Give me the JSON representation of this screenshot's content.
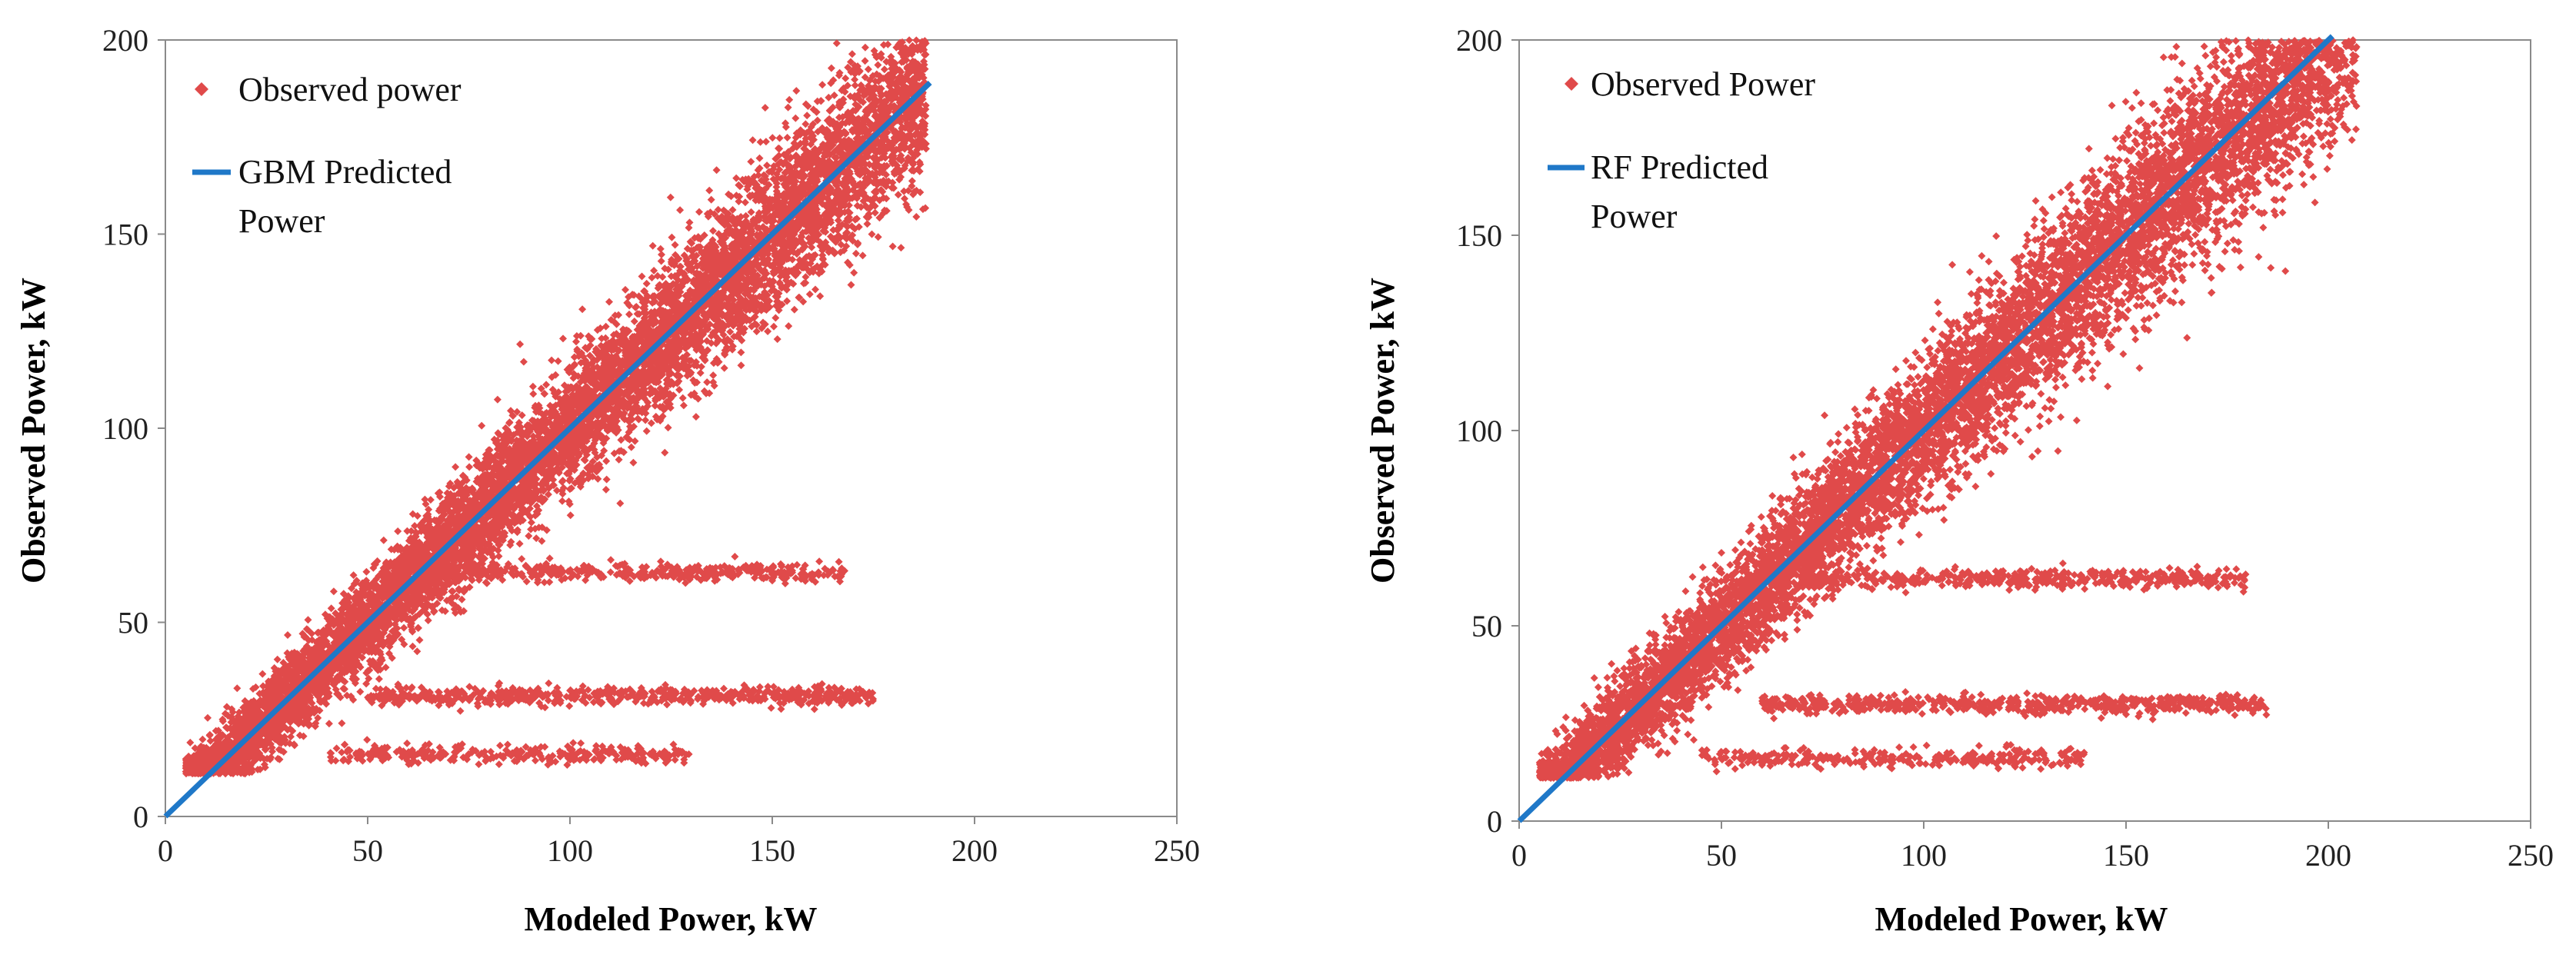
{
  "chart_data": [
    {
      "type": "scatter",
      "panel": "left",
      "xlabel": "Modeled Power, kW",
      "ylabel": "Observed Power,  kW",
      "xlim": [
        0,
        250
      ],
      "ylim": [
        0,
        200
      ],
      "xticks": [
        0,
        50,
        100,
        150,
        200,
        250
      ],
      "yticks": [
        0,
        50,
        100,
        150,
        200
      ],
      "legend_position": "top-left",
      "series": [
        {
          "name": "Observed power",
          "name_lines": [
            "Observed power"
          ],
          "kind": "scatter",
          "color": "#e04a4a",
          "marker": "diamond",
          "description": "dense cloud around the diagonal from about 5 to 188 kW; horizontal bands near 63, 31 and 16 kW",
          "clusters": [
            {
              "x_range": [
                5,
                188
              ],
              "y_offset_spread": 22,
              "count": 9000
            },
            {
              "x_range": [
                60,
                168
              ],
              "y_level": 63,
              "count": 450
            },
            {
              "x_range": [
                50,
                175
              ],
              "y_level": 31,
              "count": 600
            },
            {
              "x_range": [
                40,
                130
              ],
              "y_level": 16,
              "count": 300
            }
          ]
        },
        {
          "name": "GBM Predicted Power",
          "name_lines": [
            "GBM Predicted",
            "Power"
          ],
          "kind": "line",
          "color": "#1f78c8",
          "x": [
            0,
            189
          ],
          "y": [
            0,
            189
          ]
        }
      ]
    },
    {
      "type": "scatter",
      "panel": "right",
      "xlabel": "Modeled Power, kW",
      "ylabel": "Observed Power,  kW",
      "xlim": [
        0,
        250
      ],
      "ylim": [
        0,
        200
      ],
      "xticks": [
        0,
        50,
        100,
        150,
        200,
        250
      ],
      "yticks": [
        0,
        50,
        100,
        150,
        200
      ],
      "legend_position": "top-left",
      "series": [
        {
          "name": "Observed Power",
          "name_lines": [
            "Observed Power"
          ],
          "kind": "scatter",
          "color": "#e04a4a",
          "marker": "diamond",
          "description": "dense cloud around the diagonal from about 5 to 207 kW; horizontal bands near 62, 30 and 16 kW",
          "clusters": [
            {
              "x_range": [
                5,
                207
              ],
              "y_offset_spread": 26,
              "count": 9000
            },
            {
              "x_range": [
                70,
                180
              ],
              "y_level": 62,
              "count": 450
            },
            {
              "x_range": [
                60,
                185
              ],
              "y_level": 30,
              "count": 600
            },
            {
              "x_range": [
                45,
                140
              ],
              "y_level": 16,
              "count": 300
            }
          ]
        },
        {
          "name": "RF Predicted Power",
          "name_lines": [
            "RF Predicted",
            "Power"
          ],
          "kind": "line",
          "color": "#1f78c8",
          "x": [
            0,
            201
          ],
          "y": [
            0,
            201
          ]
        }
      ]
    }
  ]
}
